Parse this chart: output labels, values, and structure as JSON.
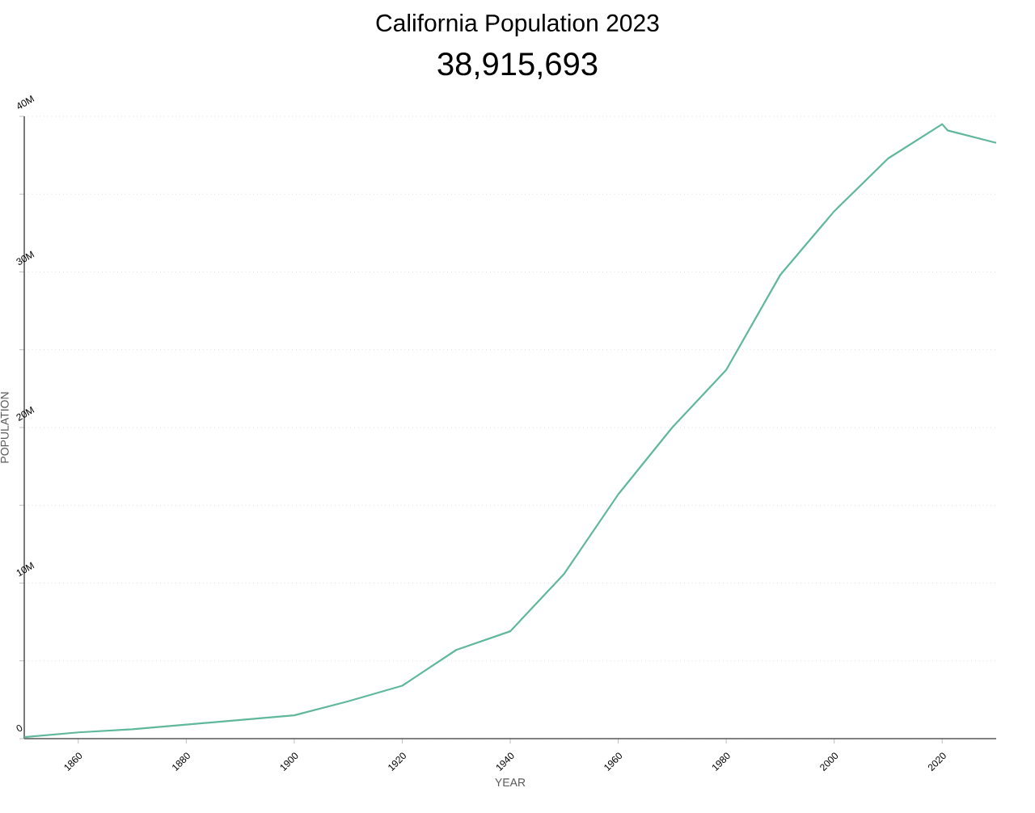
{
  "chart_data": {
    "type": "line",
    "title": "California Population 2023",
    "subtitle": "38,915,693",
    "xlabel": "YEAR",
    "ylabel": "POPULATION",
    "x": [
      1850,
      1860,
      1870,
      1880,
      1890,
      1900,
      1910,
      1920,
      1930,
      1940,
      1950,
      1960,
      1970,
      1980,
      1990,
      2000,
      2010,
      2020,
      2021,
      2030
    ],
    "series": [
      {
        "color": "#5fb89a",
        "values": [
          100000,
          400000,
          600000,
          900000,
          1200000,
          1500000,
          2400000,
          3400000,
          5700000,
          6900000,
          10600000,
          15700000,
          20000000,
          23700000,
          29800000,
          33900000,
          37300000,
          39500000,
          39100000,
          38300000
        ]
      }
    ],
    "xlim": [
      1850,
      2030
    ],
    "xticks": [
      1860,
      1880,
      1900,
      1920,
      1940,
      1960,
      1980,
      2000,
      2020
    ],
    "ylim": [
      0,
      40000000
    ],
    "yticks": [
      {
        "value": 0,
        "label": "0"
      },
      {
        "value": 5000000,
        "label": null
      },
      {
        "value": 10000000,
        "label": "10M"
      },
      {
        "value": 15000000,
        "label": null
      },
      {
        "value": 20000000,
        "label": "20M"
      },
      {
        "value": 25000000,
        "label": null
      },
      {
        "value": 30000000,
        "label": "30M"
      },
      {
        "value": 35000000,
        "label": null
      },
      {
        "value": 40000000,
        "label": "40M"
      }
    ],
    "grid": "y",
    "line_style": "solid",
    "marker": "none"
  }
}
